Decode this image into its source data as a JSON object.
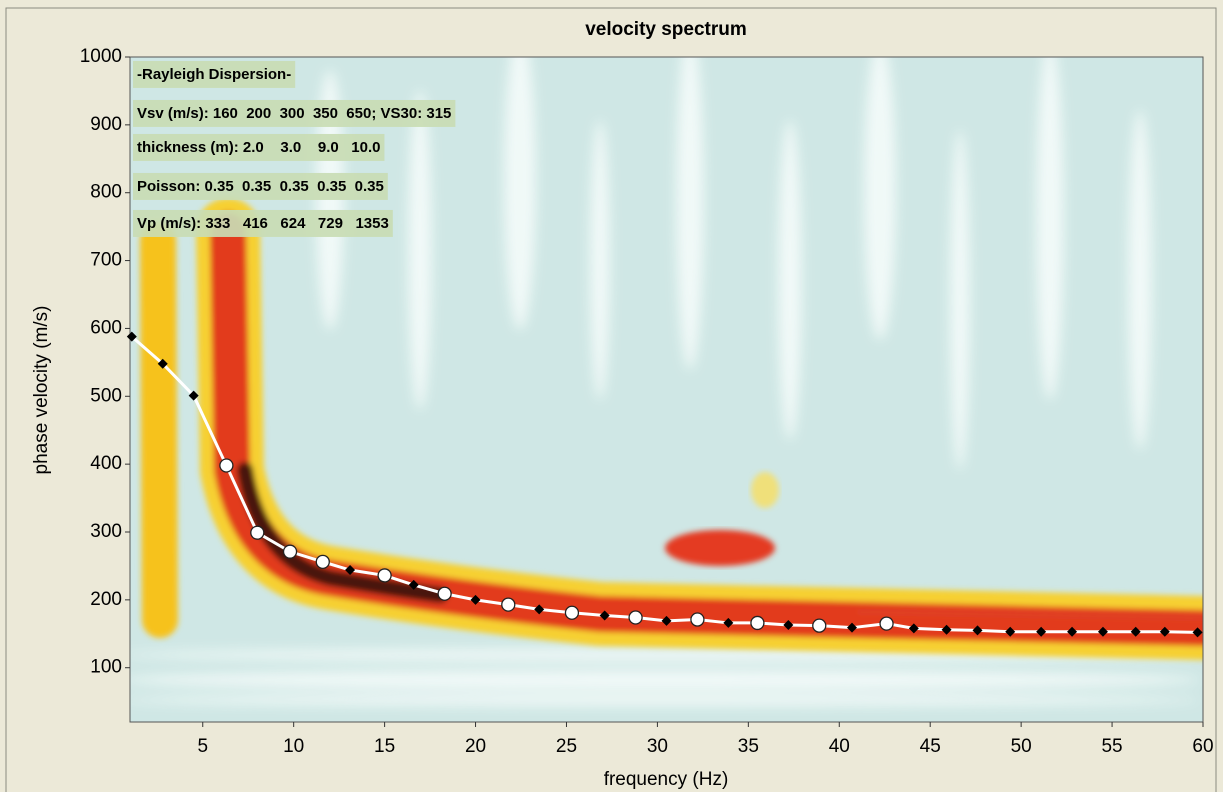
{
  "chart_data": {
    "type": "line",
    "title": "velocity spectrum",
    "xlabel": "frequency (Hz)",
    "ylabel": "phase velocity (m/s)",
    "annotations": [
      "-Rayleigh Dispersion-",
      "Vsv (m/s): 160  200  300  350  650; VS30: 315",
      "thickness (m): 2.0    3.0    9.0   10.0",
      "Poisson: 0.35  0.35  0.35  0.35  0.35",
      "Vp (m/s): 333   416   624   729   1353"
    ],
    "xlim": [
      1,
      60
    ],
    "xticks": [
      5,
      10,
      15,
      20,
      25,
      30,
      35,
      40,
      45,
      50,
      55,
      60
    ],
    "ylim": [
      20,
      1000
    ],
    "yticks": [
      100,
      200,
      300,
      400,
      500,
      600,
      700,
      800,
      900,
      1000
    ],
    "series": [
      {
        "color": "#ffffff",
        "x": [
          1.1,
          2.8,
          4.5,
          6.3,
          8.0,
          9.8,
          11.6,
          13.1,
          15.0,
          16.6,
          18.3,
          20.0,
          21.8,
          23.5,
          25.3,
          27.1,
          28.8,
          30.5,
          32.2,
          33.9,
          35.5,
          37.2,
          38.9,
          40.7,
          42.6,
          44.1,
          45.9,
          47.6,
          49.4,
          51.1,
          52.8,
          54.5,
          56.3,
          57.9,
          59.7
        ],
        "values": [
          588,
          548,
          501,
          398,
          299,
          271,
          256,
          244,
          236,
          222,
          209,
          200,
          193,
          186,
          181,
          177,
          174,
          169,
          171,
          166,
          166,
          163,
          162,
          159,
          165,
          158,
          156,
          155,
          153,
          153,
          153,
          153,
          153,
          153,
          152
        ],
        "markers": [
          "diamond",
          "diamond",
          "diamond",
          "circle",
          "circle",
          "circle",
          "circle",
          "diamond",
          "circle",
          "diamond",
          "circle",
          "diamond",
          "circle",
          "diamond",
          "circle",
          "diamond",
          "circle",
          "diamond",
          "circle",
          "diamond",
          "circle",
          "diamond",
          "circle",
          "diamond",
          "circle",
          "diamond",
          "diamond",
          "diamond",
          "diamond",
          "diamond",
          "diamond",
          "diamond",
          "diamond",
          "diamond",
          "diamond"
        ]
      }
    ]
  }
}
